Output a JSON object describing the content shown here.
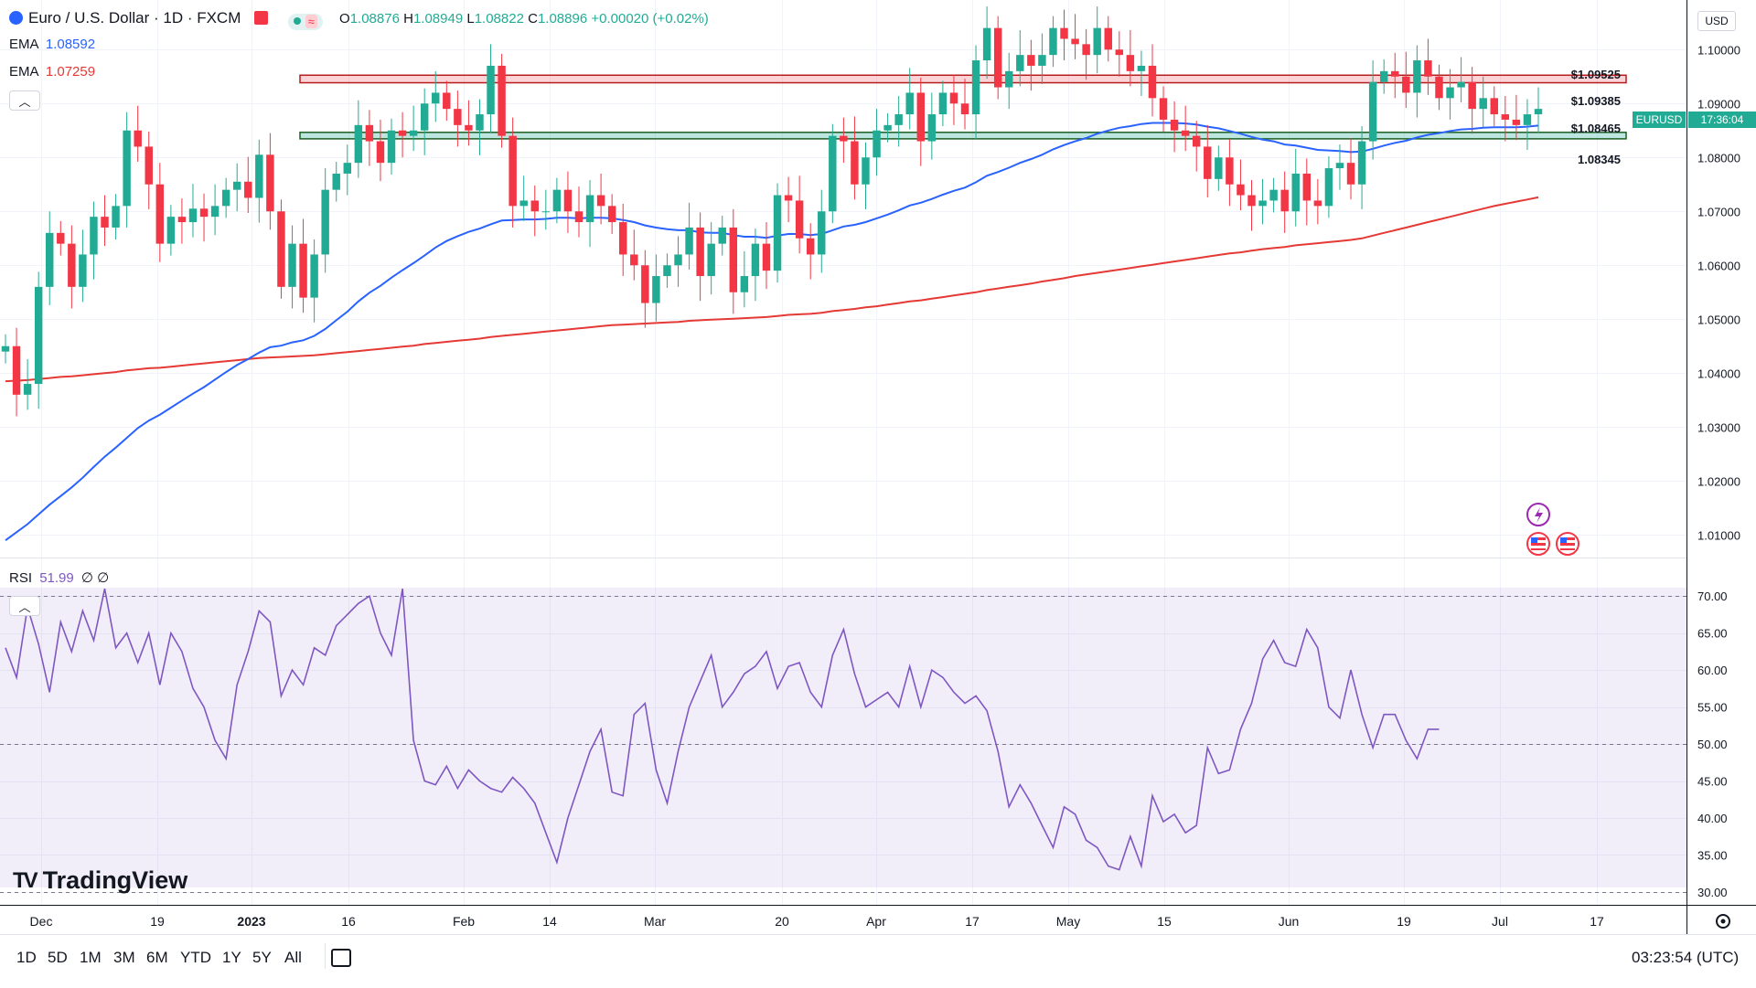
{
  "header": {
    "symbol_title": "Euro / U.S. Dollar · 1D · FXCM",
    "ohlc": {
      "o_label": "O",
      "o": "1.08876",
      "h_label": "H",
      "h": "1.08949",
      "l_label": "L",
      "l": "1.08822",
      "c_label": "C",
      "c": "1.08896",
      "change": "+0.00020 (+0.02%)"
    }
  },
  "indicators": {
    "ema1_name": "EMA",
    "ema1_value": "1.08592",
    "ema1_color": "#2962ff",
    "ema2_name": "EMA",
    "ema2_value": "1.07259",
    "ema2_color": "#e53935",
    "rsi_name": "RSI",
    "rsi_value": "51.99",
    "rsi_extra": "∅ ∅",
    "rsi_color": "#7e57c2"
  },
  "price_axis": {
    "currency": "USD",
    "symbol_tag": "EURUSD",
    "last_value": "1.08896",
    "countdown": "17:36:04"
  },
  "levels": [
    {
      "label": "$1.09525",
      "value": 1.09525
    },
    {
      "label": "$1.09385",
      "value": 1.09385
    },
    {
      "label": "$1.08465",
      "value": 1.08465
    },
    {
      "label": "1.08345",
      "value": 1.08345
    }
  ],
  "time_labels": [
    "Dec",
    "19",
    "2023",
    "16",
    "Feb",
    "14",
    "Mar",
    "20",
    "Apr",
    "17",
    "May",
    "15",
    "Jun",
    "19",
    "Jul",
    "17"
  ],
  "timeframes": [
    "1D",
    "5D",
    "1M",
    "3M",
    "6M",
    "YTD",
    "1Y",
    "5Y",
    "All"
  ],
  "clock": "03:23:54 (UTC)",
  "brand": "TradingView",
  "chart_data": {
    "type": "candlestick",
    "price_ticks": [
      1.01,
      1.02,
      1.03,
      1.04,
      1.05,
      1.06,
      1.07,
      1.08,
      1.09,
      1.1
    ],
    "price_tick_labels": [
      "1.01000",
      "1.02000",
      "1.03000",
      "1.04000",
      "1.05000",
      "1.06000",
      "1.07000",
      "1.08000",
      "1.09000",
      "1.10000"
    ],
    "price_range": [
      1.0075,
      1.1075
    ],
    "rsi_ticks": [
      30,
      35,
      40,
      45,
      50,
      55,
      60,
      65,
      70
    ],
    "rsi_tick_labels": [
      "30.00",
      "35.00",
      "40.00",
      "45.00",
      "50.00",
      "55.00",
      "60.00",
      "65.00",
      "70.00"
    ],
    "rsi_range": [
      29,
      72
    ],
    "rsi_bands": [
      30,
      50,
      70
    ],
    "up_color": "#22ab94",
    "down_color": "#f23645",
    "support_zone": [
      1.08345,
      1.08465
    ],
    "resistance_zone": [
      1.09385,
      1.09525
    ],
    "closes": [
      1.045,
      1.036,
      1.038,
      1.056,
      1.066,
      1.064,
      1.056,
      1.062,
      1.069,
      1.067,
      1.071,
      1.085,
      1.082,
      1.075,
      1.064,
      1.069,
      1.068,
      1.0705,
      1.069,
      1.071,
      1.074,
      1.0755,
      1.0725,
      1.0805,
      1.07,
      1.056,
      1.064,
      1.054,
      1.062,
      1.074,
      1.077,
      1.079,
      1.086,
      1.083,
      1.079,
      1.085,
      1.084,
      1.085,
      1.09,
      1.092,
      1.089,
      1.086,
      1.085,
      1.088,
      1.097,
      1.084,
      1.071,
      1.072,
      1.07,
      1.07,
      1.074,
      1.07,
      1.068,
      1.073,
      1.071,
      1.068,
      1.062,
      1.06,
      1.053,
      1.058,
      1.06,
      1.062,
      1.067,
      1.058,
      1.064,
      1.067,
      1.055,
      1.058,
      1.064,
      1.059,
      1.073,
      1.072,
      1.065,
      1.062,
      1.07,
      1.084,
      1.083,
      1.075,
      1.08,
      1.085,
      1.086,
      1.088,
      1.092,
      1.083,
      1.088,
      1.092,
      1.09,
      1.088,
      1.098,
      1.104,
      1.093,
      1.096,
      1.099,
      1.097,
      1.099,
      1.104,
      1.102,
      1.101,
      1.099,
      1.104,
      1.1,
      1.099,
      1.096,
      1.097,
      1.091,
      1.087,
      1.085,
      1.084,
      1.082,
      1.076,
      1.08,
      1.075,
      1.073,
      1.071,
      1.072,
      1.074,
      1.07,
      1.077,
      1.072,
      1.071,
      1.078,
      1.079,
      1.075,
      1.083,
      1.094,
      1.096,
      1.095,
      1.092,
      1.098,
      1.095,
      1.091,
      1.093,
      1.094,
      1.089,
      1.091,
      1.088,
      1.087,
      1.086,
      1.088,
      1.089
    ],
    "ema_fast": [
      1.009,
      1.0105,
      1.012,
      1.0138,
      1.0156,
      1.0172,
      1.0188,
      1.0206,
      1.0226,
      1.0245,
      1.0262,
      1.028,
      1.0298,
      1.0312,
      1.0323,
      1.0336,
      1.0349,
      1.0362,
      1.0374,
      1.0388,
      1.0402,
      1.0415,
      1.0426,
      1.0438,
      1.0448,
      1.0451,
      1.0457,
      1.0461,
      1.0469,
      1.0482,
      1.0498,
      1.0514,
      1.0533,
      1.0549,
      1.0562,
      1.0577,
      1.0591,
      1.0604,
      1.0618,
      1.0633,
      1.0645,
      1.0654,
      1.0662,
      1.0668,
      1.0676,
      1.0683,
      1.0684,
      1.0685,
      1.0685,
      1.0686,
      1.0688,
      1.0688,
      1.0687,
      1.0688,
      1.0688,
      1.0687,
      1.0684,
      1.068,
      1.0674,
      1.067,
      1.0667,
      1.0665,
      1.0665,
      1.0661,
      1.066,
      1.066,
      1.0656,
      1.0653,
      1.0653,
      1.0651,
      1.0655,
      1.0658,
      1.0658,
      1.0656,
      1.0658,
      1.0665,
      1.0672,
      1.0675,
      1.068,
      1.0687,
      1.0694,
      1.0702,
      1.0711,
      1.0716,
      1.0723,
      1.0731,
      1.0738,
      1.0744,
      1.0754,
      1.0766,
      1.0773,
      1.0781,
      1.079,
      1.0797,
      1.0805,
      1.0815,
      1.0823,
      1.083,
      1.0836,
      1.0844,
      1.085,
      1.0855,
      1.0858,
      1.0862,
      1.0864,
      1.0864,
      1.0864,
      1.0863,
      1.0861,
      1.0857,
      1.0854,
      1.0849,
      1.0844,
      1.0838,
      1.0833,
      1.083,
      1.0824,
      1.0822,
      1.0818,
      1.0814,
      1.0813,
      1.0812,
      1.081,
      1.0811,
      1.0816,
      1.0822,
      1.0827,
      1.0831,
      1.0837,
      1.0842,
      1.0845,
      1.0849,
      1.0852,
      1.0853,
      1.0855,
      1.0856,
      1.0856,
      1.0856,
      1.0857,
      1.0859
    ],
    "ema_slow": [
      1.0385,
      1.0386,
      1.0387,
      1.0389,
      1.0391,
      1.0393,
      1.0394,
      1.0396,
      1.0398,
      1.04,
      1.0402,
      1.0405,
      1.0407,
      1.0409,
      1.041,
      1.0412,
      1.0414,
      1.0416,
      1.0418,
      1.042,
      1.0422,
      1.0424,
      1.0426,
      1.0428,
      1.0429,
      1.043,
      1.0431,
      1.0432,
      1.0433,
      1.0435,
      1.0437,
      1.0439,
      1.0441,
      1.0443,
      1.0445,
      1.0447,
      1.0449,
      1.0451,
      1.0454,
      1.0456,
      1.0458,
      1.046,
      1.0462,
      1.0464,
      1.0467,
      1.0469,
      1.0471,
      1.0473,
      1.0475,
      1.0477,
      1.0479,
      1.0481,
      1.0483,
      1.0485,
      1.0487,
      1.0489,
      1.049,
      1.0491,
      1.0492,
      1.0493,
      1.0494,
      1.0495,
      1.0497,
      1.0498,
      1.0499,
      1.05,
      1.0501,
      1.0502,
      1.0503,
      1.0504,
      1.0506,
      1.0508,
      1.0509,
      1.051,
      1.0512,
      1.0515,
      1.0517,
      1.0519,
      1.0522,
      1.0524,
      1.0527,
      1.053,
      1.0533,
      1.0535,
      1.0538,
      1.0541,
      1.0544,
      1.0547,
      1.055,
      1.0554,
      1.0557,
      1.056,
      1.0563,
      1.0566,
      1.057,
      1.0573,
      1.0576,
      1.058,
      1.0583,
      1.0586,
      1.0589,
      1.0592,
      1.0595,
      1.0598,
      1.0601,
      1.0604,
      1.0607,
      1.061,
      1.0613,
      1.0616,
      1.0619,
      1.0622,
      1.0624,
      1.0627,
      1.063,
      1.0632,
      1.0634,
      1.0637,
      1.0639,
      1.0641,
      1.0643,
      1.0645,
      1.0647,
      1.065,
      1.0655,
      1.066,
      1.0665,
      1.067,
      1.0675,
      1.068,
      1.0685,
      1.069,
      1.0695,
      1.07,
      1.0705,
      1.071,
      1.0714,
      1.0718,
      1.0722,
      1.0726
    ],
    "rsi": [
      63.0,
      59.0,
      68.5,
      63.5,
      57.0,
      66.5,
      62.5,
      68.0,
      64.0,
      71.0,
      63.0,
      65.0,
      61.0,
      65.0,
      58.0,
      65.0,
      62.5,
      57.5,
      55.0,
      50.5,
      48.0,
      58.0,
      62.5,
      68.0,
      66.5,
      56.5,
      60.0,
      58.0,
      63.0,
      62.0,
      66.0,
      67.5,
      69.0,
      70.0,
      65.0,
      62.0,
      71.0,
      50.5,
      45.0,
      44.5,
      47.0,
      44.0,
      46.5,
      45.0,
      44.0,
      43.5,
      45.5,
      44.0,
      42.0,
      38.0,
      34.0,
      40.0,
      44.5,
      49.0,
      52.0,
      43.5,
      43.0,
      54.0,
      55.5,
      46.5,
      42.0,
      49.0,
      55.0,
      58.5,
      62.0,
      55.0,
      57.0,
      59.5,
      60.5,
      62.5,
      57.5,
      60.5,
      61.0,
      57.0,
      55.0,
      62.0,
      65.5,
      59.5,
      55.0,
      56.0,
      57.0,
      55.0,
      60.5,
      55.0,
      60.0,
      59.0,
      57.0,
      55.5,
      56.5,
      54.5,
      49.0,
      41.5,
      44.5,
      42.0,
      39.0,
      36.0,
      41.5,
      40.5,
      37.0,
      36.0,
      33.5,
      33.0,
      37.5,
      33.5,
      43.0,
      39.5,
      40.5,
      38.0,
      39.0,
      49.5,
      46.0,
      46.5,
      52.0,
      55.5,
      61.5,
      64.0,
      61.0,
      60.5,
      65.5,
      63.0,
      55.0,
      53.5,
      60.0,
      54.0,
      49.5,
      54.0,
      54.0,
      50.5,
      48.0,
      52.0,
      52.0
    ]
  }
}
